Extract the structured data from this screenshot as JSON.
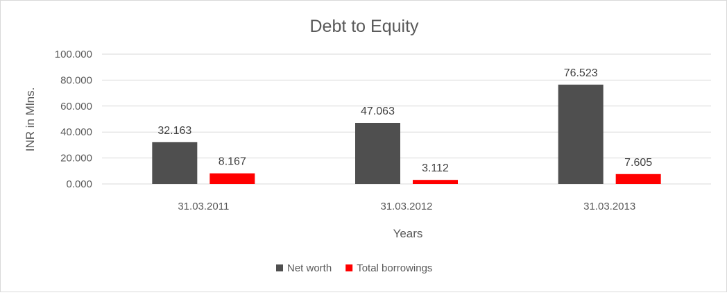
{
  "chart_data": {
    "type": "bar",
    "title": "Debt to Equity",
    "xlabel": "Years",
    "ylabel": "INR in Mlns.",
    "categories": [
      "31.03.2011",
      "31.03.2012",
      "31.03.2013"
    ],
    "series": [
      {
        "name": "Net worth",
        "values": [
          32.163,
          47.063,
          76.523
        ],
        "labels": [
          "32.163",
          "47.063",
          "76.523"
        ],
        "color": "#4f4f4f"
      },
      {
        "name": "Total borrowings",
        "values": [
          8.167,
          3.112,
          7.605
        ],
        "labels": [
          "8.167",
          "3.112",
          "7.605"
        ],
        "color": "#ff0000"
      }
    ],
    "ylim": [
      0,
      100
    ],
    "yticks": [
      "0.000",
      "20.000",
      "40.000",
      "60.000",
      "80.000",
      "100.000"
    ],
    "grid": true,
    "legend_position": "bottom"
  }
}
